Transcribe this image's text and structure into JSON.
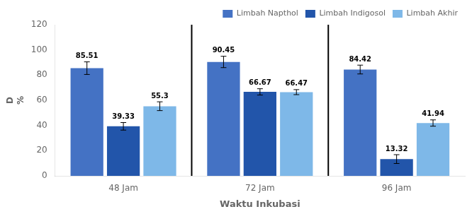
{
  "chart_data": {
    "type": "bar",
    "categories": [
      "48 Jam",
      "72 Jam",
      "96 Jam"
    ],
    "series": [
      {
        "name": "Limbah Napthol",
        "color": "#4472C4",
        "values": [
          85.51,
          90.45,
          84.42
        ],
        "errors": [
          5.0,
          4.5,
          3.5
        ]
      },
      {
        "name": "Limbah Indigosol",
        "color": "#2255AA",
        "values": [
          39.33,
          66.67,
          13.32
        ],
        "errors": [
          3.0,
          2.5,
          3.5
        ]
      },
      {
        "name": "Limbah Akhir",
        "color": "#7EB8E8",
        "values": [
          55.3,
          66.47,
          41.94
        ],
        "errors": [
          3.5,
          2.0,
          2.5
        ]
      }
    ],
    "xlabel": "Waktu Inkubasi",
    "ylabel": "D\n%",
    "ylim": [
      0,
      120
    ],
    "yticks": [
      0,
      20,
      40,
      60,
      80,
      100,
      120
    ],
    "grid": false,
    "legend": "upper right",
    "data_labels": true
  }
}
